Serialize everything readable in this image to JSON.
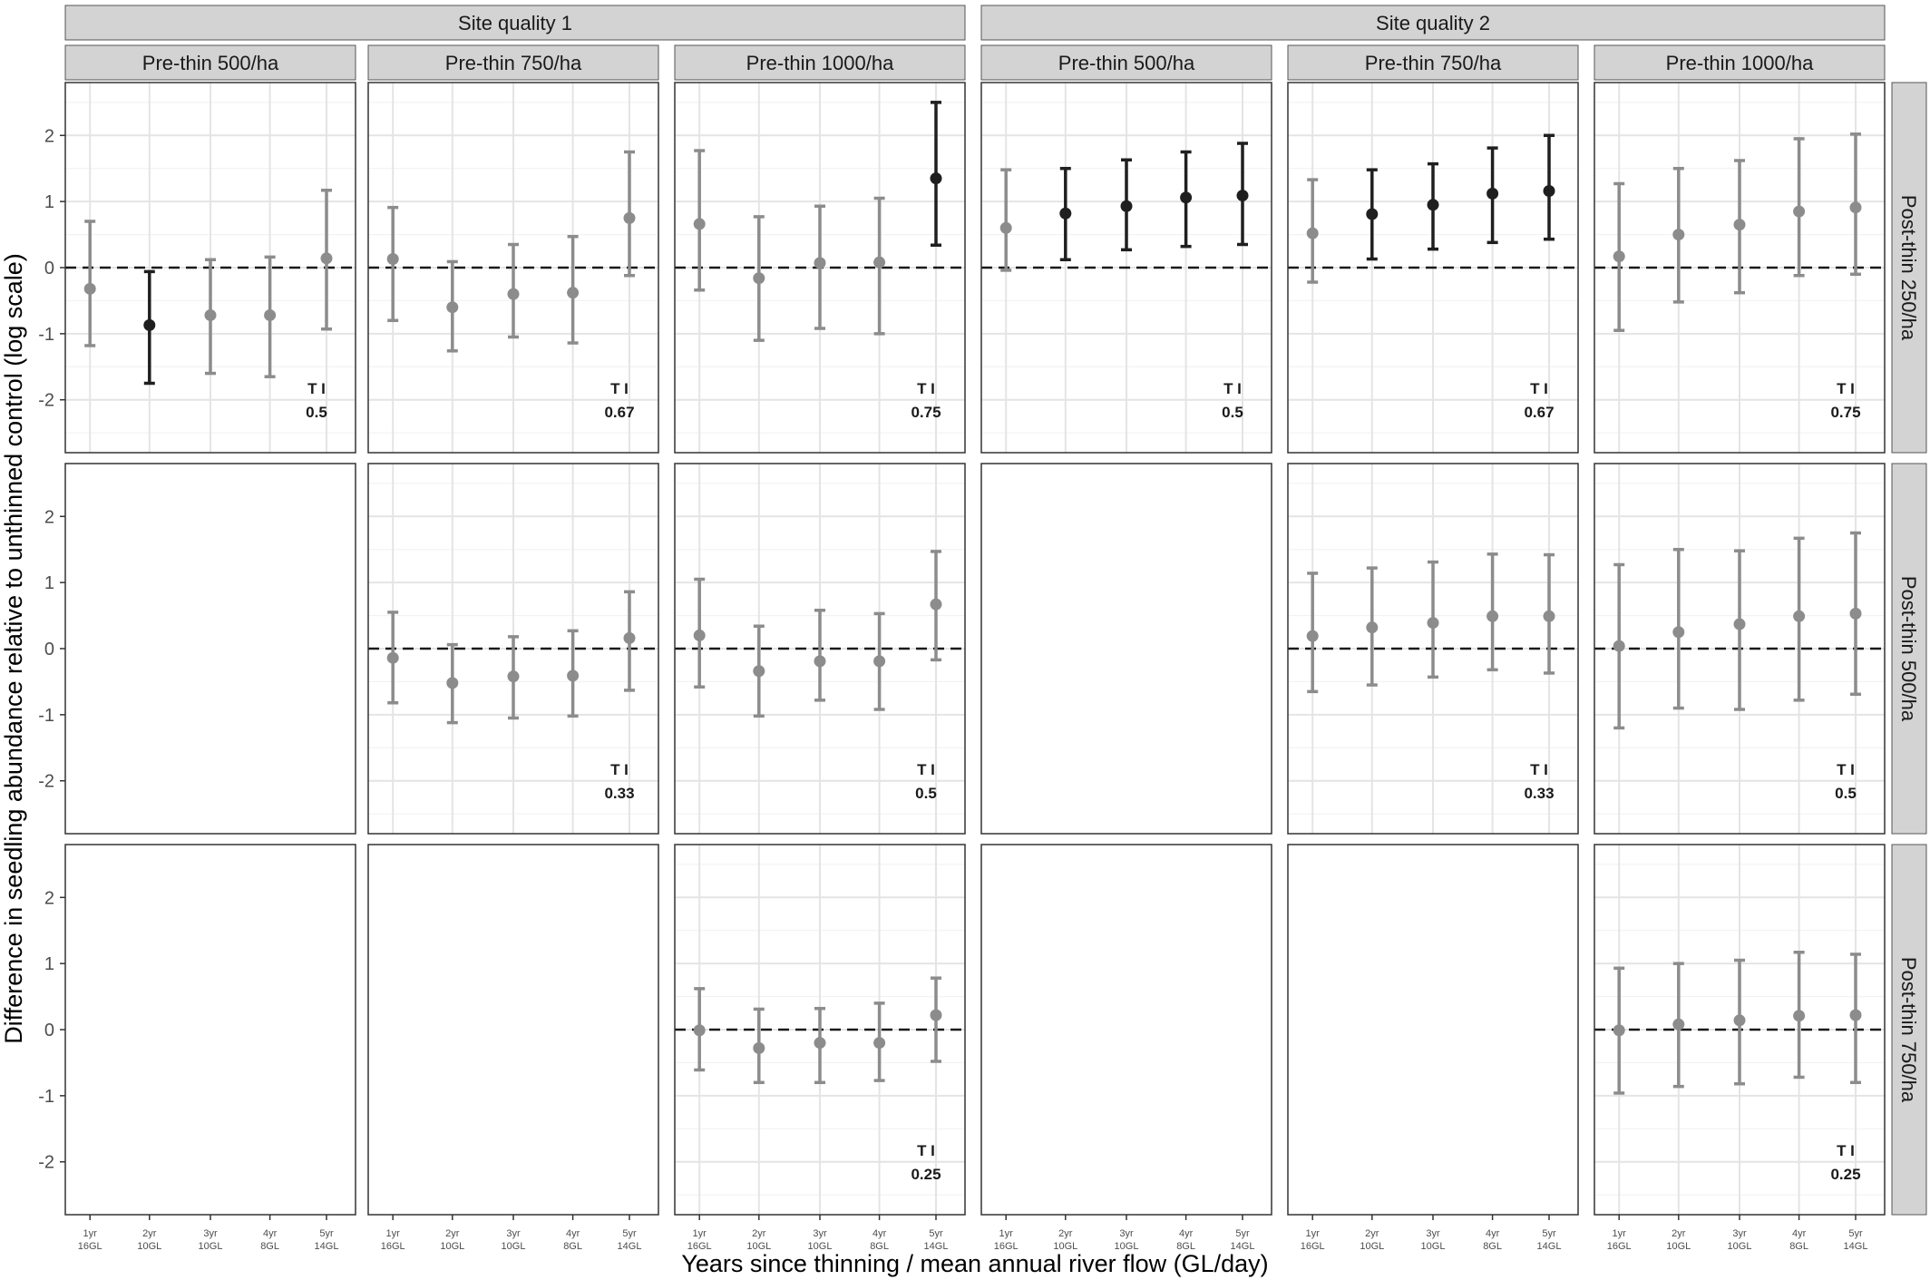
{
  "chart_data": {
    "type": "errorbar-facet",
    "xlabel": "Years since thinning / mean annual river flow (GL/day)",
    "ylabel": "Difference in seedling abundance relative to unthinned control (log scale)",
    "ylim": [
      -2.8,
      2.8
    ],
    "y_ticks": [
      "2",
      "1",
      "0",
      "-1",
      "-2"
    ],
    "x_tick_labels": [
      {
        "year": "1yr",
        "flow": "16GL"
      },
      {
        "year": "2yr",
        "flow": "10GL"
      },
      {
        "year": "3yr",
        "flow": "10GL"
      },
      {
        "year": "4yr",
        "flow": "8GL"
      },
      {
        "year": "5yr",
        "flow": "14GL"
      }
    ],
    "reference_line": 0,
    "grid": true,
    "colors": {
      "significant": "#1f1f1f",
      "nonsignificant": "#8c8c8c",
      "strip_fill": "#d3d3d3"
    },
    "site_groups": [
      "Site quality 1",
      "Site quality 2"
    ],
    "column_labels": [
      "Pre-thin 500/ha",
      "Pre-thin 750/ha",
      "Pre-thin 1000/ha",
      "Pre-thin 500/ha",
      "Pre-thin 750/ha",
      "Pre-thin 1000/ha"
    ],
    "row_labels": [
      "Post-thin 250/ha",
      "Post-thin 500/ha",
      "Post-thin 750/ha"
    ],
    "ti_label": "T I",
    "panels": [
      {
        "row": 0,
        "col": 0,
        "ti": "0.5",
        "points": [
          {
            "y": -0.32,
            "lo": -1.18,
            "hi": 0.7,
            "sig": false
          },
          {
            "y": -0.87,
            "lo": -1.75,
            "hi": -0.06,
            "sig": true
          },
          {
            "y": -0.72,
            "lo": -1.6,
            "hi": 0.12,
            "sig": false
          },
          {
            "y": -0.72,
            "lo": -1.65,
            "hi": 0.16,
            "sig": false
          },
          {
            "y": 0.14,
            "lo": -0.93,
            "hi": 1.17,
            "sig": false
          }
        ]
      },
      {
        "row": 0,
        "col": 1,
        "ti": "0.67",
        "points": [
          {
            "y": 0.13,
            "lo": -0.8,
            "hi": 0.91,
            "sig": false
          },
          {
            "y": -0.6,
            "lo": -1.26,
            "hi": 0.09,
            "sig": false
          },
          {
            "y": -0.4,
            "lo": -1.05,
            "hi": 0.35,
            "sig": false
          },
          {
            "y": -0.38,
            "lo": -1.14,
            "hi": 0.47,
            "sig": false
          },
          {
            "y": 0.75,
            "lo": -0.12,
            "hi": 1.75,
            "sig": false
          }
        ]
      },
      {
        "row": 0,
        "col": 2,
        "ti": "0.75",
        "points": [
          {
            "y": 0.66,
            "lo": -0.34,
            "hi": 1.77,
            "sig": false
          },
          {
            "y": -0.16,
            "lo": -1.1,
            "hi": 0.77,
            "sig": false
          },
          {
            "y": 0.07,
            "lo": -0.92,
            "hi": 0.93,
            "sig": false
          },
          {
            "y": 0.08,
            "lo": -1.0,
            "hi": 1.05,
            "sig": false
          },
          {
            "y": 1.35,
            "lo": 0.34,
            "hi": 2.5,
            "sig": true
          }
        ]
      },
      {
        "row": 0,
        "col": 3,
        "ti": "0.5",
        "points": [
          {
            "y": 0.6,
            "lo": -0.04,
            "hi": 1.48,
            "sig": false
          },
          {
            "y": 0.82,
            "lo": 0.12,
            "hi": 1.5,
            "sig": true
          },
          {
            "y": 0.93,
            "lo": 0.27,
            "hi": 1.63,
            "sig": true
          },
          {
            "y": 1.06,
            "lo": 0.32,
            "hi": 1.75,
            "sig": true
          },
          {
            "y": 1.09,
            "lo": 0.35,
            "hi": 1.88,
            "sig": true
          }
        ]
      },
      {
        "row": 0,
        "col": 4,
        "ti": "0.67",
        "points": [
          {
            "y": 0.52,
            "lo": -0.22,
            "hi": 1.33,
            "sig": false
          },
          {
            "y": 0.81,
            "lo": 0.13,
            "hi": 1.48,
            "sig": true
          },
          {
            "y": 0.95,
            "lo": 0.28,
            "hi": 1.57,
            "sig": true
          },
          {
            "y": 1.12,
            "lo": 0.38,
            "hi": 1.81,
            "sig": true
          },
          {
            "y": 1.16,
            "lo": 0.43,
            "hi": 2.0,
            "sig": true
          }
        ]
      },
      {
        "row": 0,
        "col": 5,
        "ti": "0.75",
        "points": [
          {
            "y": 0.17,
            "lo": -0.95,
            "hi": 1.27,
            "sig": false
          },
          {
            "y": 0.5,
            "lo": -0.52,
            "hi": 1.5,
            "sig": false
          },
          {
            "y": 0.65,
            "lo": -0.38,
            "hi": 1.62,
            "sig": false
          },
          {
            "y": 0.85,
            "lo": -0.12,
            "hi": 1.95,
            "sig": false
          },
          {
            "y": 0.91,
            "lo": -0.1,
            "hi": 2.02,
            "sig": false
          }
        ]
      },
      {
        "row": 1,
        "col": 1,
        "ti": "0.33",
        "points": [
          {
            "y": -0.14,
            "lo": -0.82,
            "hi": 0.55,
            "sig": false
          },
          {
            "y": -0.52,
            "lo": -1.12,
            "hi": 0.06,
            "sig": false
          },
          {
            "y": -0.42,
            "lo": -1.05,
            "hi": 0.18,
            "sig": false
          },
          {
            "y": -0.41,
            "lo": -1.02,
            "hi": 0.27,
            "sig": false
          },
          {
            "y": 0.16,
            "lo": -0.63,
            "hi": 0.86,
            "sig": false
          }
        ]
      },
      {
        "row": 1,
        "col": 2,
        "ti": "0.5",
        "points": [
          {
            "y": 0.2,
            "lo": -0.58,
            "hi": 1.05,
            "sig": false
          },
          {
            "y": -0.34,
            "lo": -1.02,
            "hi": 0.34,
            "sig": false
          },
          {
            "y": -0.19,
            "lo": -0.78,
            "hi": 0.58,
            "sig": false
          },
          {
            "y": -0.19,
            "lo": -0.92,
            "hi": 0.53,
            "sig": false
          },
          {
            "y": 0.67,
            "lo": -0.17,
            "hi": 1.47,
            "sig": false
          }
        ]
      },
      {
        "row": 1,
        "col": 4,
        "ti": "0.33",
        "points": [
          {
            "y": 0.19,
            "lo": -0.65,
            "hi": 1.14,
            "sig": false
          },
          {
            "y": 0.32,
            "lo": -0.55,
            "hi": 1.22,
            "sig": false
          },
          {
            "y": 0.39,
            "lo": -0.43,
            "hi": 1.31,
            "sig": false
          },
          {
            "y": 0.49,
            "lo": -0.32,
            "hi": 1.43,
            "sig": false
          },
          {
            "y": 0.49,
            "lo": -0.37,
            "hi": 1.42,
            "sig": false
          }
        ]
      },
      {
        "row": 1,
        "col": 5,
        "ti": "0.5",
        "points": [
          {
            "y": 0.04,
            "lo": -1.2,
            "hi": 1.27,
            "sig": false
          },
          {
            "y": 0.25,
            "lo": -0.9,
            "hi": 1.5,
            "sig": false
          },
          {
            "y": 0.37,
            "lo": -0.92,
            "hi": 1.48,
            "sig": false
          },
          {
            "y": 0.49,
            "lo": -0.78,
            "hi": 1.67,
            "sig": false
          },
          {
            "y": 0.53,
            "lo": -0.69,
            "hi": 1.75,
            "sig": false
          }
        ]
      },
      {
        "row": 2,
        "col": 2,
        "ti": "0.25",
        "points": [
          {
            "y": -0.01,
            "lo": -0.61,
            "hi": 0.62,
            "sig": false
          },
          {
            "y": -0.28,
            "lo": -0.8,
            "hi": 0.31,
            "sig": false
          },
          {
            "y": -0.2,
            "lo": -0.8,
            "hi": 0.32,
            "sig": false
          },
          {
            "y": -0.2,
            "lo": -0.77,
            "hi": 0.4,
            "sig": false
          },
          {
            "y": 0.22,
            "lo": -0.48,
            "hi": 0.78,
            "sig": false
          }
        ]
      },
      {
        "row": 2,
        "col": 5,
        "ti": "0.25",
        "points": [
          {
            "y": -0.01,
            "lo": -0.96,
            "hi": 0.93,
            "sig": false
          },
          {
            "y": 0.08,
            "lo": -0.86,
            "hi": 1.0,
            "sig": false
          },
          {
            "y": 0.14,
            "lo": -0.82,
            "hi": 1.05,
            "sig": false
          },
          {
            "y": 0.21,
            "lo": -0.72,
            "hi": 1.17,
            "sig": false
          },
          {
            "y": 0.22,
            "lo": -0.8,
            "hi": 1.14,
            "sig": false
          }
        ]
      }
    ]
  }
}
